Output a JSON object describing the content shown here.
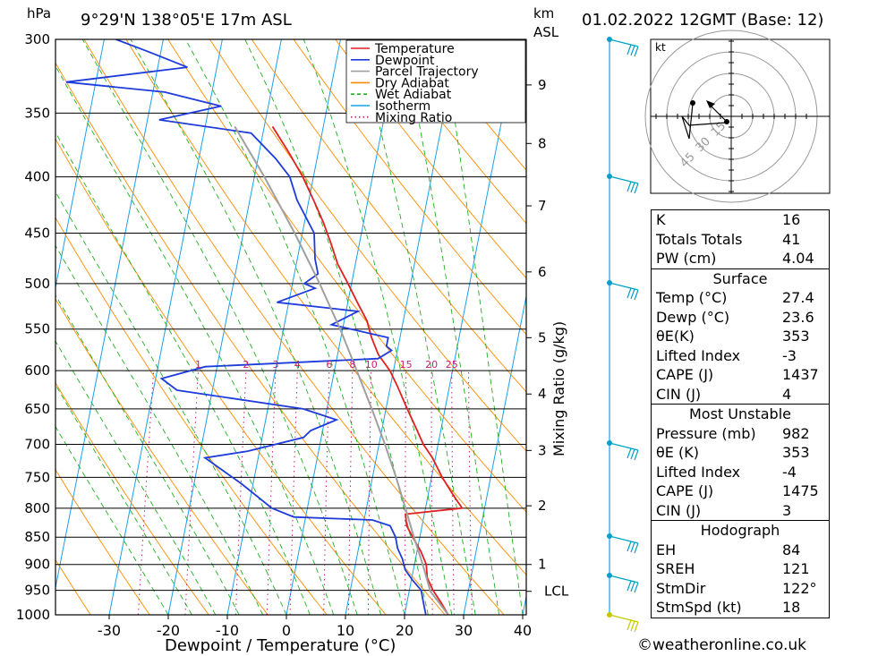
{
  "header": {
    "location": "9°29'N  138°05'E  17m  ASL",
    "datetime": "01.02.2022  12GMT  (Base: 12)",
    "pressure_unit": "hPa",
    "height_unit_line1": "km",
    "height_unit_line2": "ASL"
  },
  "chart_data": {
    "type": "line",
    "title": "9°29'N 138°05'E 17m ASL",
    "xlabel": "Dewpoint / Temperature (°C)",
    "ylabel": "hPa",
    "y2label": "Mixing Ratio (g/kg)",
    "x_ticks": [
      -30,
      -20,
      -10,
      0,
      10,
      20,
      30,
      40
    ],
    "pressure_levels": [
      300,
      350,
      400,
      450,
      500,
      550,
      600,
      650,
      700,
      750,
      800,
      850,
      900,
      950,
      1000
    ],
    "height_km_ticks": [
      {
        "km": 1,
        "p": 900
      },
      {
        "km": 2,
        "p": 796
      },
      {
        "km": 3,
        "p": 709
      },
      {
        "km": 4,
        "p": 630
      },
      {
        "km": 5,
        "p": 560
      },
      {
        "km": 6,
        "p": 488
      },
      {
        "km": 7,
        "p": 425
      },
      {
        "km": 8,
        "p": 373
      },
      {
        "km": 9,
        "p": 330
      },
      {
        "km": "LCL",
        "p": 952
      }
    ],
    "mixing_ratio_labels": [
      "1",
      "2",
      "3",
      "4",
      "6",
      "8",
      "10",
      "15",
      "20",
      "25"
    ],
    "mixing_ratio_label_pressure": 600,
    "legend": {
      "placement": "top-right",
      "entries": [
        {
          "name": "Temperature",
          "color": "#e02020",
          "style": "solid"
        },
        {
          "name": "Dewpoint",
          "color": "#1e3cdc",
          "style": "solid"
        },
        {
          "name": "Parcel Trajectory",
          "color": "#a0a0a0",
          "style": "solid"
        },
        {
          "name": "Dry Adiabat",
          "color": "#ff8c00",
          "style": "solid"
        },
        {
          "name": "Wet Adiabat",
          "color": "#20b020",
          "style": "dashed"
        },
        {
          "name": "Isotherm",
          "color": "#1aa0e8",
          "style": "solid"
        },
        {
          "name": "Mixing Ratio",
          "color": "#c81e78",
          "style": "dotted"
        }
      ]
    },
    "series": [
      {
        "name": "Temperature",
        "color": "#e02020",
        "points": [
          [
            1000,
            27.4
          ],
          [
            975,
            25.8
          ],
          [
            950,
            24.0
          ],
          [
            925,
            22.6
          ],
          [
            900,
            22.0
          ],
          [
            875,
            20.6
          ],
          [
            850,
            18.8
          ],
          [
            830,
            17.4
          ],
          [
            810,
            16.8
          ],
          [
            800,
            26.2
          ],
          [
            780,
            24.4
          ],
          [
            750,
            21.8
          ],
          [
            720,
            19.5
          ],
          [
            700,
            17.5
          ],
          [
            680,
            16.0
          ],
          [
            650,
            13.6
          ],
          [
            620,
            11.2
          ],
          [
            600,
            9.4
          ],
          [
            580,
            6.9
          ],
          [
            560,
            5.2
          ],
          [
            540,
            3.8
          ],
          [
            520,
            1.6
          ],
          [
            500,
            -0.6
          ],
          [
            480,
            -3.0
          ],
          [
            460,
            -4.8
          ],
          [
            440,
            -6.8
          ],
          [
            420,
            -9.2
          ],
          [
            400,
            -11.8
          ],
          [
            380,
            -15.0
          ],
          [
            360,
            -18.6
          ]
        ]
      },
      {
        "name": "Dewpoint",
        "color": "#1e3cdc",
        "points": [
          [
            1000,
            23.6
          ],
          [
            975,
            22.8
          ],
          [
            950,
            22.0
          ],
          [
            930,
            20.2
          ],
          [
            910,
            18.6
          ],
          [
            890,
            17.8
          ],
          [
            870,
            16.6
          ],
          [
            850,
            15.9
          ],
          [
            830,
            14.6
          ],
          [
            820,
            11.4
          ],
          [
            815,
            -2.0
          ],
          [
            800,
            -6.0
          ],
          [
            760,
            -12.0
          ],
          [
            720,
            -19.0
          ],
          [
            710,
            -12.0
          ],
          [
            690,
            -3.0
          ],
          [
            680,
            -2.0
          ],
          [
            665,
            2.0
          ],
          [
            650,
            -4.0
          ],
          [
            625,
            -26.0
          ],
          [
            610,
            -29.0
          ],
          [
            595,
            -22.0
          ],
          [
            585,
            7.0
          ],
          [
            575,
            9.0
          ],
          [
            570,
            8.0
          ],
          [
            560,
            8.0
          ],
          [
            545,
            -2.0
          ],
          [
            530,
            2.0
          ],
          [
            520,
            -12.0
          ],
          [
            505,
            -6.0
          ],
          [
            500,
            -8.0
          ],
          [
            490,
            -6.0
          ],
          [
            475,
            -7.0
          ],
          [
            450,
            -8.0
          ],
          [
            420,
            -12.0
          ],
          [
            400,
            -14.0
          ],
          [
            385,
            -17.0
          ],
          [
            365,
            -22.0
          ],
          [
            355,
            -38.0
          ],
          [
            345,
            -28.0
          ],
          [
            335,
            -38.0
          ],
          [
            328,
            -55.0
          ],
          [
            318,
            -35.0
          ],
          [
            308,
            -42.0
          ],
          [
            300,
            -48.0
          ]
        ]
      },
      {
        "name": "Parcel Trajectory",
        "color": "#a0a0a0",
        "points": [
          [
            1000,
            27.4
          ],
          [
            952,
            23.6
          ],
          [
            900,
            21.4
          ],
          [
            850,
            19.0
          ],
          [
            800,
            16.6
          ],
          [
            750,
            14.0
          ],
          [
            700,
            11.0
          ],
          [
            650,
            7.6
          ],
          [
            600,
            3.8
          ],
          [
            550,
            -0.4
          ],
          [
            500,
            -5.4
          ],
          [
            450,
            -11.3
          ],
          [
            400,
            -18.3
          ],
          [
            360,
            -25.0
          ]
        ]
      }
    ]
  },
  "hodograph": {
    "unit_label": "kt",
    "ring_labels": [
      "15",
      "30",
      "45"
    ]
  },
  "indices": {
    "top": [
      {
        "label": "K",
        "value": "16"
      },
      {
        "label": "Totals Totals",
        "value": "41"
      },
      {
        "label": "PW (cm)",
        "value": "4.04"
      }
    ],
    "surface": {
      "title": "Surface",
      "rows": [
        {
          "label": "Temp (°C)",
          "value": "27.4"
        },
        {
          "label": "Dewp (°C)",
          "value": "23.6"
        },
        {
          "label": "θE(K)",
          "value": "353"
        },
        {
          "label": "Lifted Index",
          "value": "-3"
        },
        {
          "label": "CAPE (J)",
          "value": "1437"
        },
        {
          "label": "CIN (J)",
          "value": "4"
        }
      ]
    },
    "unstable": {
      "title": "Most Unstable",
      "rows": [
        {
          "label": "Pressure (mb)",
          "value": "982"
        },
        {
          "label": "θE (K)",
          "value": "353"
        },
        {
          "label": "Lifted Index",
          "value": "-4"
        },
        {
          "label": "CAPE (J)",
          "value": "1475"
        },
        {
          "label": "CIN (J)",
          "value": "3"
        }
      ]
    },
    "hodo": {
      "title": "Hodograph",
      "rows": [
        {
          "label": "EH",
          "value": "84"
        },
        {
          "label": "SREH",
          "value": "121"
        },
        {
          "label": "StmDir",
          "value": "122°"
        },
        {
          "label": "StmSpd (kt)",
          "value": "18"
        }
      ]
    }
  },
  "credit": "©weatheronline.co.uk"
}
